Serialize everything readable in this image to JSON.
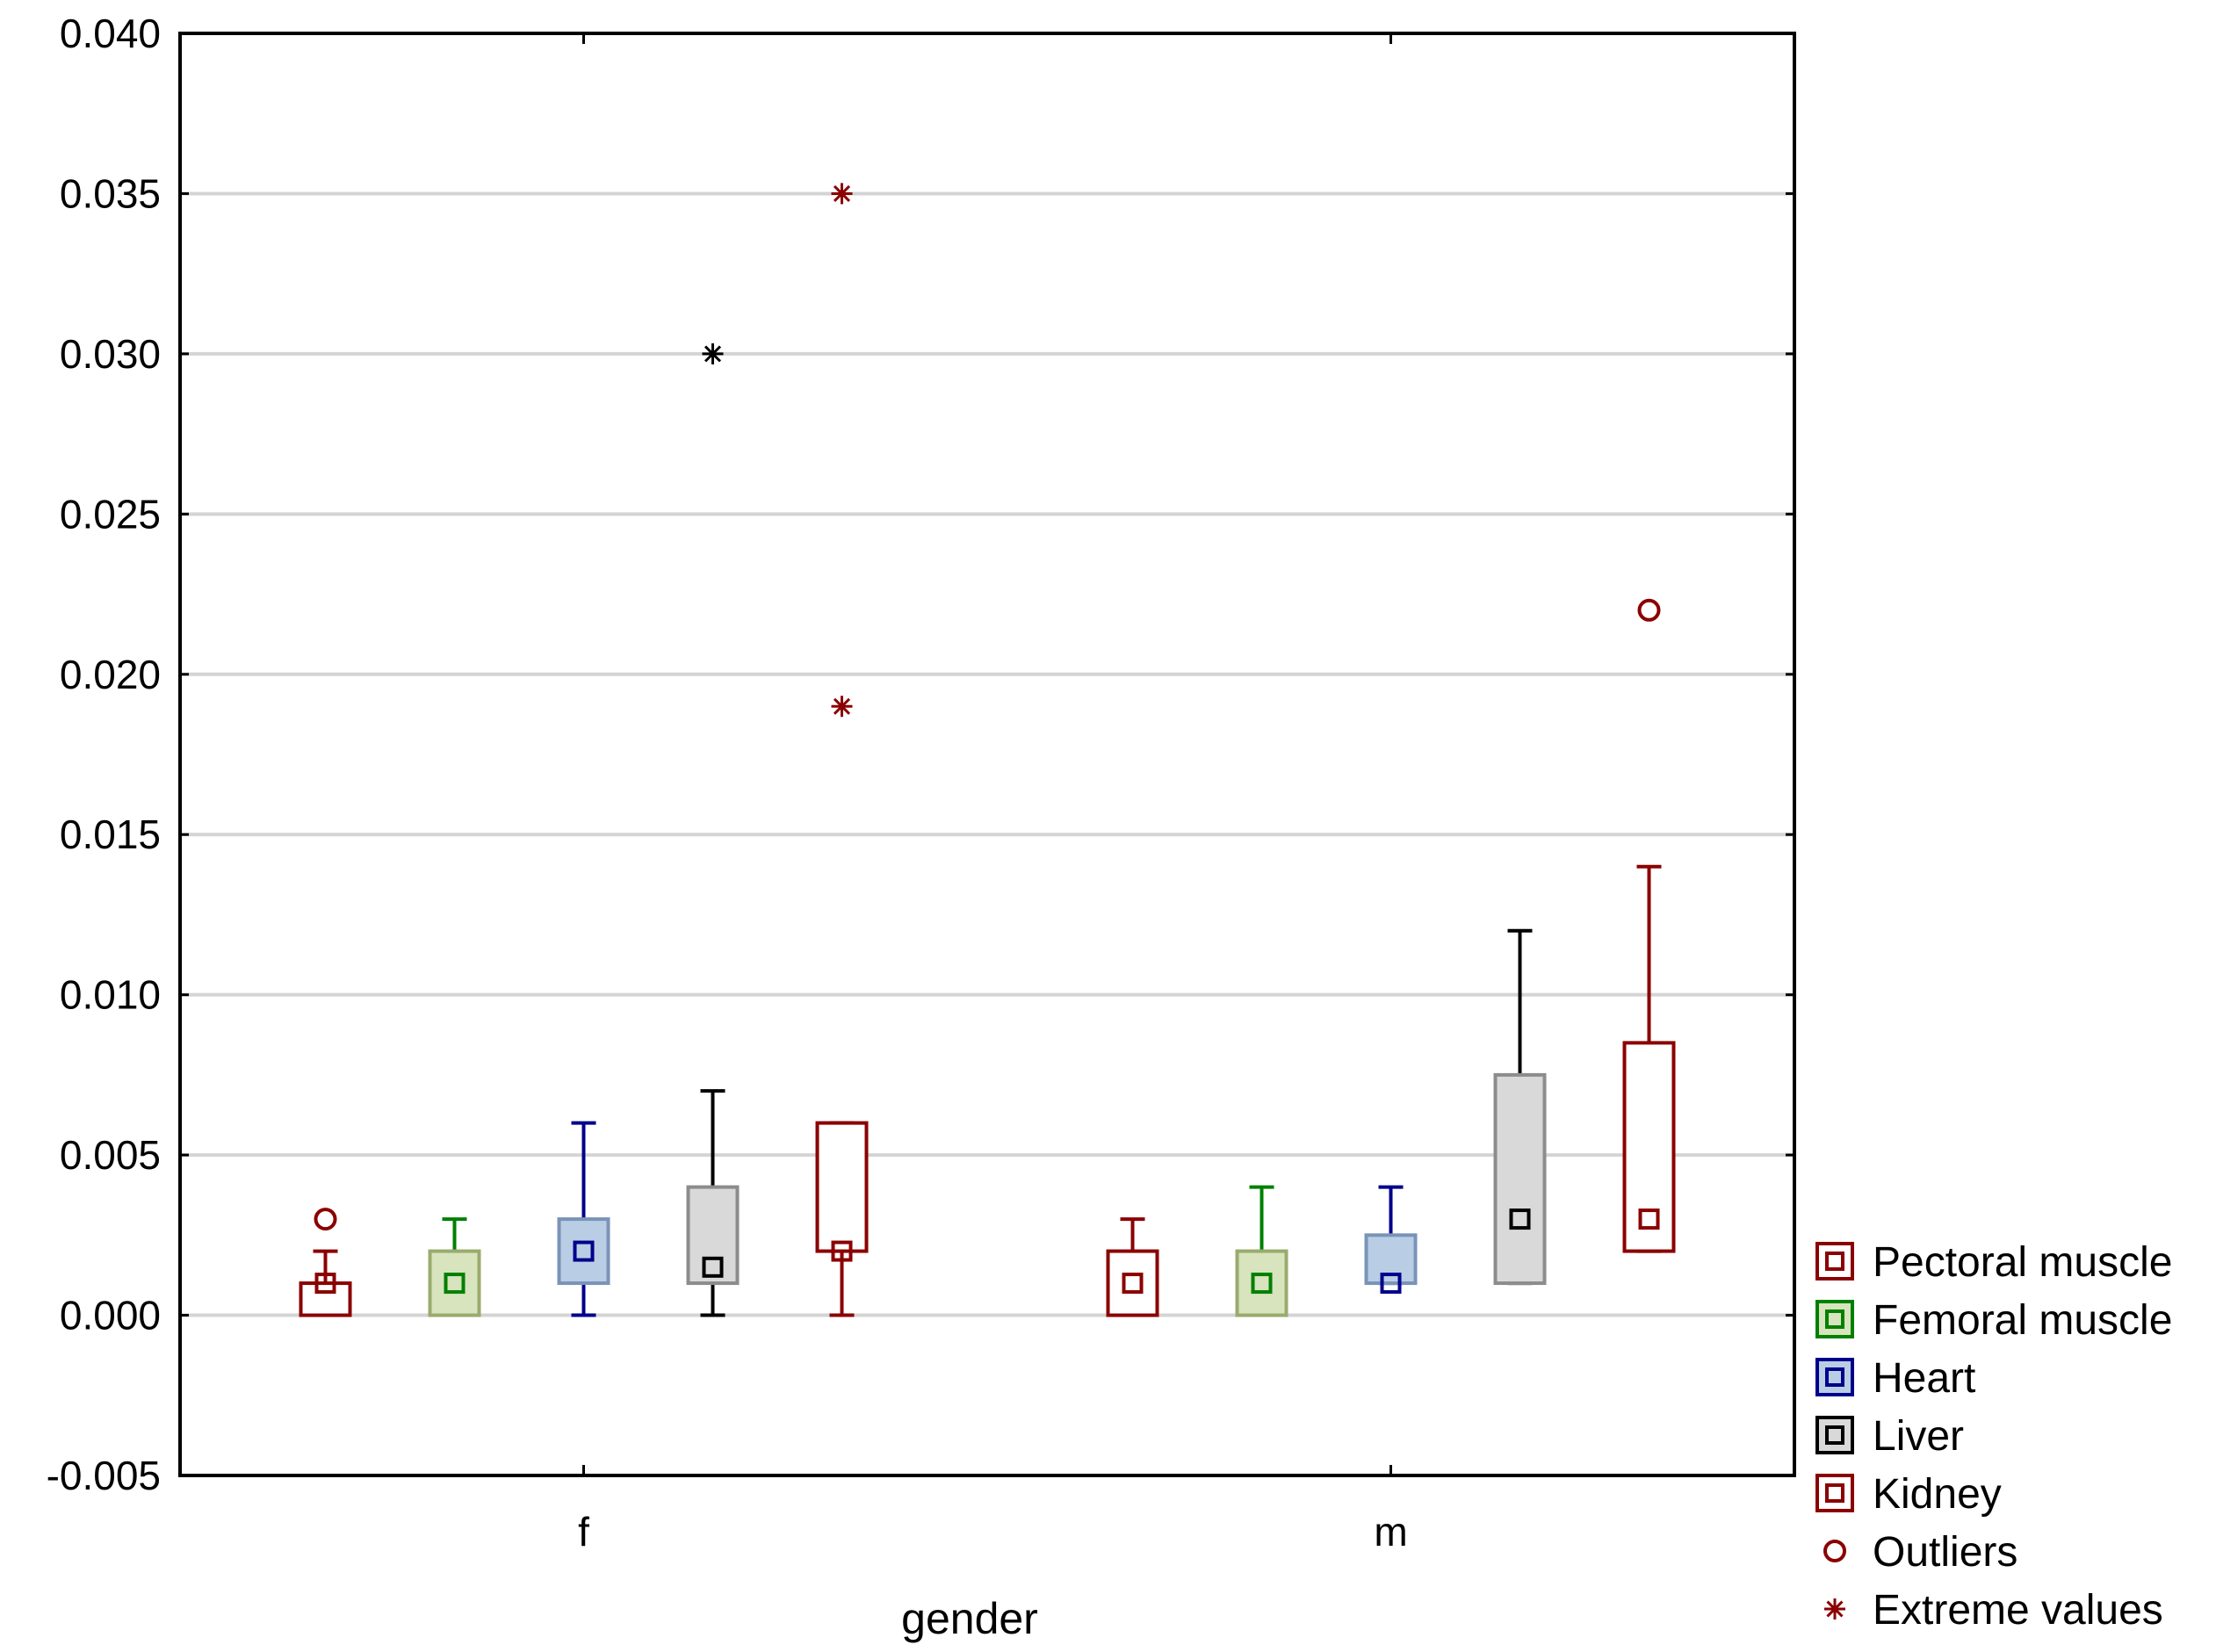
{
  "chart_data": {
    "type": "boxplot",
    "title": "",
    "xlabel": "gender",
    "ylabel": "",
    "ylim": [
      -0.005,
      0.04
    ],
    "yticks": [
      "-0.005",
      "0.000",
      "0.005",
      "0.010",
      "0.015",
      "0.020",
      "0.025",
      "0.030",
      "0.035",
      "0.040"
    ],
    "ytick_values": [
      -0.005,
      0.0,
      0.005,
      0.01,
      0.015,
      0.02,
      0.025,
      0.03,
      0.035,
      0.04
    ],
    "grid": true,
    "categories": [
      "f",
      "m"
    ],
    "series": [
      {
        "name": "Pectoral muscle",
        "color": "#8b0000",
        "fill": "#ffffff",
        "boxes": [
          {
            "category": "f",
            "median": 0.001,
            "q1": 0.0,
            "q3": 0.001,
            "min": 0.0,
            "max": 0.002,
            "outliers": [
              0.003
            ],
            "extremes": []
          },
          {
            "category": "m",
            "median": 0.001,
            "q1": 0.0,
            "q3": 0.002,
            "min": 0.0,
            "max": 0.003,
            "outliers": [],
            "extremes": []
          }
        ]
      },
      {
        "name": "Femoral muscle",
        "color": "#008000",
        "fill": "#d7e4bd",
        "box_edge": "#9aab6e",
        "boxes": [
          {
            "category": "f",
            "median": 0.001,
            "q1": 0.0,
            "q3": 0.002,
            "min": 0.0,
            "max": 0.003,
            "outliers": [],
            "extremes": []
          },
          {
            "category": "m",
            "median": 0.001,
            "q1": 0.0,
            "q3": 0.002,
            "min": 0.0,
            "max": 0.004,
            "outliers": [],
            "extremes": []
          }
        ]
      },
      {
        "name": "Heart",
        "color": "#00008b",
        "fill": "#b9cde5",
        "box_edge": "#7a93b8",
        "boxes": [
          {
            "category": "f",
            "median": 0.002,
            "q1": 0.001,
            "q3": 0.003,
            "min": 0.0,
            "max": 0.006,
            "outliers": [],
            "extremes": []
          },
          {
            "category": "m",
            "median": 0.001,
            "q1": 0.001,
            "q3": 0.0025,
            "min": 0.001,
            "max": 0.004,
            "outliers": [],
            "extremes": []
          }
        ]
      },
      {
        "name": "Liver",
        "color": "#000000",
        "fill": "#d9d9d9",
        "box_edge": "#8c8c8c",
        "boxes": [
          {
            "category": "f",
            "median": 0.0015,
            "q1": 0.001,
            "q3": 0.004,
            "min": 0.0,
            "max": 0.007,
            "outliers": [],
            "extremes": [
              0.03
            ]
          },
          {
            "category": "m",
            "median": 0.003,
            "q1": 0.001,
            "q3": 0.0075,
            "min": 0.001,
            "max": 0.012,
            "outliers": [],
            "extremes": []
          }
        ]
      },
      {
        "name": "Kidney",
        "color": "#8b0000",
        "fill": "#ffffff",
        "boxes": [
          {
            "category": "f",
            "median": 0.002,
            "q1": 0.002,
            "q3": 0.006,
            "min": 0.0,
            "max": 0.006,
            "outliers": [],
            "extremes": [
              0.019,
              0.035
            ]
          },
          {
            "category": "m",
            "median": 0.003,
            "q1": 0.002,
            "q3": 0.0085,
            "min": 0.002,
            "max": 0.014,
            "outliers": [
              0.022
            ],
            "extremes": []
          }
        ]
      }
    ],
    "legend": {
      "position": "bottom-right outside",
      "entries": [
        {
          "label": "Pectoral muscle",
          "kind": "box",
          "color": "#8b0000",
          "fill": "#ffffff"
        },
        {
          "label": "Femoral muscle",
          "kind": "box",
          "color": "#008000",
          "fill": "#d7e4bd"
        },
        {
          "label": "Heart",
          "kind": "box",
          "color": "#00008b",
          "fill": "#b9cde5"
        },
        {
          "label": "Liver",
          "kind": "box",
          "color": "#000000",
          "fill": "#d9d9d9"
        },
        {
          "label": "Kidney",
          "kind": "box",
          "color": "#8b0000",
          "fill": "#ffffff"
        },
        {
          "label": "Outliers",
          "kind": "circle",
          "color": "#8b0000"
        },
        {
          "label": "Extreme values",
          "kind": "star",
          "color": "#8b0000"
        }
      ]
    },
    "colors": {
      "grid": "#d4d4d4",
      "axis": "#000000",
      "outlier": "#8b0000",
      "extreme": "#8b0000"
    }
  }
}
